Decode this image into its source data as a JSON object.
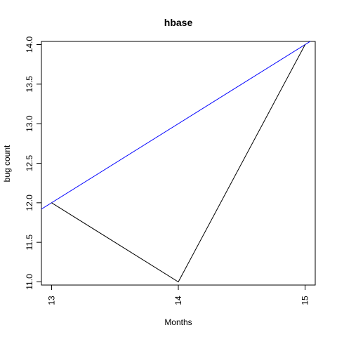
{
  "chart_data": {
    "type": "line",
    "title": "hbase",
    "xlabel": "Months",
    "ylabel": "bug count",
    "xlim": [
      12.92,
      15.08
    ],
    "ylim": [
      10.96,
      14.04
    ],
    "x_ticks": [
      13,
      14,
      15
    ],
    "x_tick_labels": [
      "13",
      "14",
      "15"
    ],
    "y_ticks": [
      11.0,
      11.5,
      12.0,
      12.5,
      13.0,
      13.5,
      14.0
    ],
    "y_tick_labels": [
      "11.0",
      "11.5",
      "12.0",
      "12.5",
      "13.0",
      "13.5",
      "14.0"
    ],
    "grid": false,
    "series": [
      {
        "x": [
          13,
          14,
          15
        ],
        "y": [
          12,
          11,
          14
        ],
        "color": "#000000"
      }
    ],
    "trend_line": {
      "intercept": -1.0,
      "slope": 1.0,
      "color": "#0000ff"
    }
  }
}
